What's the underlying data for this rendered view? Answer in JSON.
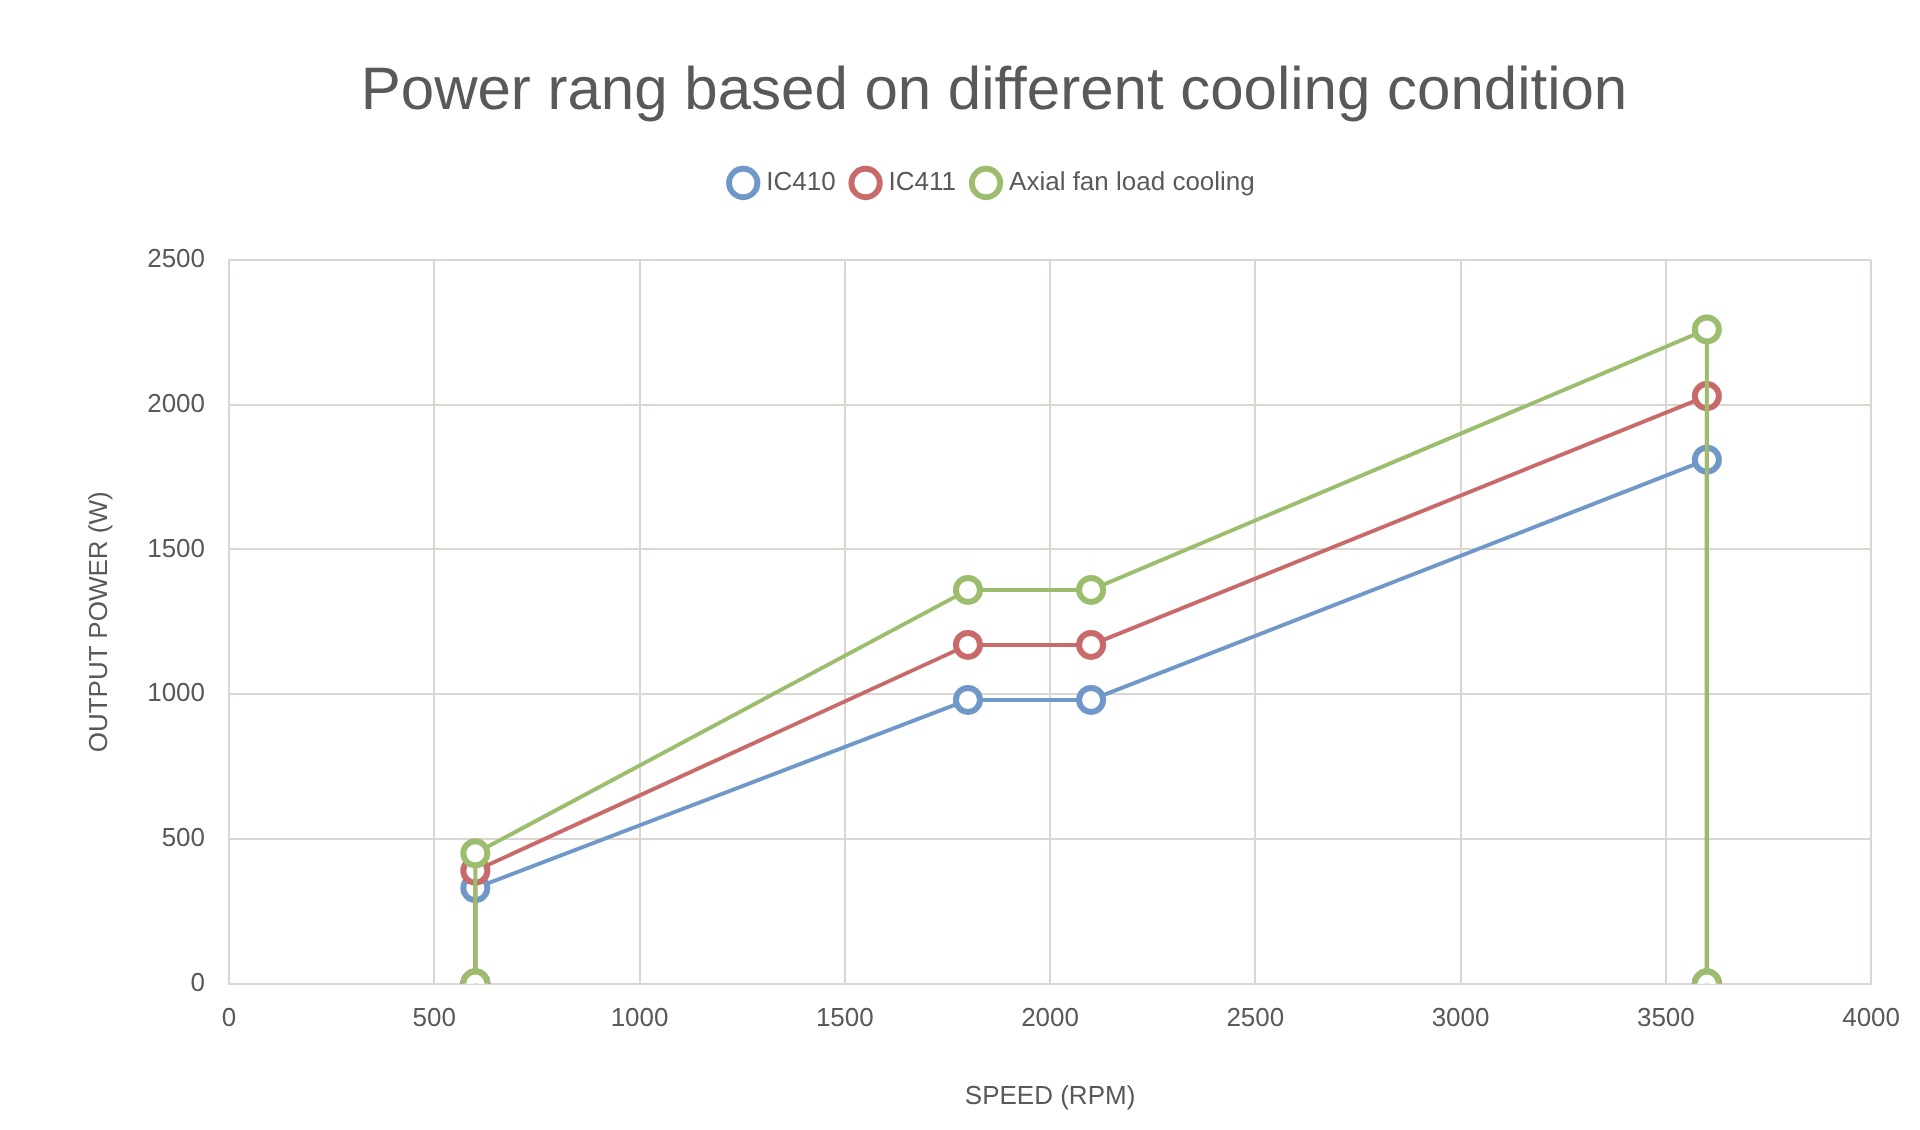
{
  "chart_data": {
    "type": "line",
    "title": "Power rang based on different cooling condition",
    "xlabel": "SPEED (RPM)",
    "ylabel": "OUTPUT POWER (W)",
    "series": [
      {
        "name": "IC410",
        "color": "#6f98c8",
        "x": [
          600,
          600,
          1800,
          2100,
          3600,
          3600
        ],
        "values": [
          0,
          330,
          980,
          980,
          1810,
          0
        ]
      },
      {
        "name": "IC411",
        "color": "#c96a6a",
        "x": [
          600,
          600,
          1800,
          2100,
          3600,
          3600
        ],
        "values": [
          0,
          390,
          1170,
          1170,
          2030,
          0
        ]
      },
      {
        "name": "Axial fan load cooling",
        "color": "#9dbd6e",
        "x": [
          600,
          600,
          1800,
          2100,
          3600,
          3600
        ],
        "values": [
          0,
          450,
          1360,
          1360,
          2260,
          0
        ]
      }
    ],
    "xlim": [
      0,
      4000
    ],
    "xticks": [
      0,
      500,
      1000,
      1500,
      2000,
      2500,
      3000,
      3500,
      4000
    ],
    "ylim": [
      0,
      2500
    ],
    "yticks": [
      0,
      500,
      1000,
      1500,
      2000,
      2500
    ],
    "grid": true,
    "legend": "top",
    "marker": "circle",
    "line_style": "solid"
  }
}
